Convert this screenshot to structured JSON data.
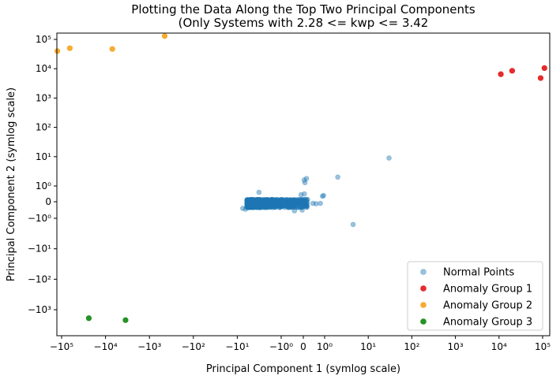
{
  "chart_data": {
    "type": "scatter",
    "title": "Plotting the Data Along the Top Two Principal Components",
    "subtitle": "(Only Systems with 2.28 <= kwp <= 3.42",
    "xlabel": "Principal Component 1 (symlog scale)",
    "ylabel": "Principal Component 2 (symlog scale)",
    "xscale": "symlog",
    "yscale": "symlog",
    "xlim": [
      -130000,
      130000
    ],
    "ylim": [
      -10000,
      150000
    ],
    "grid": false,
    "legend_position": "bottom-right",
    "x_ticks": [
      {
        "value": -100000,
        "label": "−10⁵"
      },
      {
        "value": -10000,
        "label": "−10⁴"
      },
      {
        "value": -1000,
        "label": "−10³"
      },
      {
        "value": -100,
        "label": "−10²"
      },
      {
        "value": -10,
        "label": "−10¹"
      },
      {
        "value": -1,
        "label": "−10⁰"
      },
      {
        "value": 0,
        "label": "0"
      },
      {
        "value": 1,
        "label": "10⁰"
      },
      {
        "value": 10,
        "label": "10¹"
      },
      {
        "value": 100,
        "label": "10²"
      },
      {
        "value": 1000,
        "label": "10³"
      },
      {
        "value": 10000,
        "label": "10⁴"
      },
      {
        "value": 100000,
        "label": "10⁵"
      }
    ],
    "y_ticks": [
      {
        "value": -1000,
        "label": "−10³"
      },
      {
        "value": -100,
        "label": "−10²"
      },
      {
        "value": -10,
        "label": "−10¹"
      },
      {
        "value": -1,
        "label": "−10⁰"
      },
      {
        "value": 0,
        "label": "0"
      },
      {
        "value": 1,
        "label": "10⁰"
      },
      {
        "value": 10,
        "label": "10¹"
      },
      {
        "value": 100,
        "label": "10²"
      },
      {
        "value": 1000,
        "label": "10³"
      },
      {
        "value": 10000,
        "label": "10⁴"
      },
      {
        "value": 100000,
        "label": "10⁵"
      }
    ],
    "series": [
      {
        "name": "Normal Points",
        "color": "#1f77b4",
        "opacity": 0.45,
        "cluster": {
          "x_range": [
            -6,
            0.2
          ],
          "y_range": [
            -0.35,
            0.15
          ],
          "count": 900
        },
        "outliers": [
          {
            "x": 30,
            "y": 9
          },
          {
            "x": 2,
            "y": 2
          },
          {
            "x": 4.5,
            "y": -1.6
          },
          {
            "x": 0.15,
            "y": 1.8
          },
          {
            "x": 0.08,
            "y": 1.3
          },
          {
            "x": 0.04,
            "y": 1.6
          },
          {
            "x": -3.2,
            "y": 0.6
          },
          {
            "x": 0.95,
            "y": 0.4
          },
          {
            "x": 0.9,
            "y": 0.35
          },
          {
            "x": 0.45,
            "y": -0.1
          },
          {
            "x": 0.6,
            "y": -0.12
          },
          {
            "x": 0.8,
            "y": -0.1
          },
          {
            "x": -0.4,
            "y": -0.55
          },
          {
            "x": -0.05,
            "y": -0.5
          },
          {
            "x": 0.05,
            "y": 0.5
          },
          {
            "x": -0.1,
            "y": 0.45
          },
          {
            "x": -7.5,
            "y": -0.4
          },
          {
            "x": -6.5,
            "y": -0.45
          }
        ]
      },
      {
        "name": "Anomaly Group 1",
        "color": "#e31a1c",
        "points": [
          {
            "x": 11000,
            "y": 6500
          },
          {
            "x": 20000,
            "y": 8500
          },
          {
            "x": 90000,
            "y": 4800
          },
          {
            "x": 110000,
            "y": 10500
          }
        ]
      },
      {
        "name": "Anomaly Group 2",
        "color": "#f5a623",
        "points": [
          {
            "x": -125000,
            "y": 40000
          },
          {
            "x": -65000,
            "y": 50000
          },
          {
            "x": -7000,
            "y": 47000
          },
          {
            "x": -450,
            "y": 130000
          }
        ]
      },
      {
        "name": "Anomaly Group 3",
        "color": "#138a13",
        "points": [
          {
            "x": -24000,
            "y": -1900
          },
          {
            "x": -3500,
            "y": -2200
          }
        ]
      }
    ]
  }
}
